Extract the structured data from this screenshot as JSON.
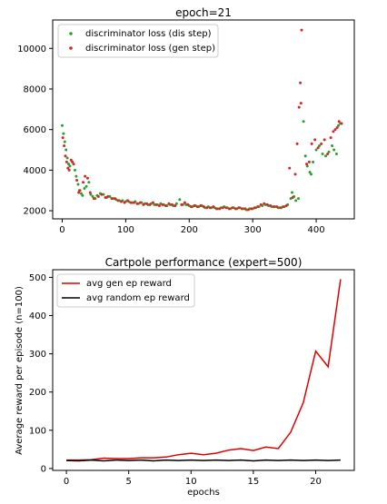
{
  "chart_data": [
    {
      "type": "scatter",
      "title": "epoch=21",
      "xlabel": "",
      "ylabel": "",
      "xlim": [
        -15,
        460
      ],
      "ylim": [
        1600,
        11400
      ],
      "x_ticks": [
        0,
        100,
        200,
        300,
        400
      ],
      "y_ticks": [
        2000,
        4000,
        6000,
        8000,
        10000
      ],
      "grid": false,
      "legend_position": "top-left",
      "series": [
        {
          "name": "discriminator loss (dis step)",
          "color": "#2ca02c",
          "points": [
            [
              0,
              6200
            ],
            [
              2,
              5800
            ],
            [
              4,
              5400
            ],
            [
              6,
              5000
            ],
            [
              8,
              4600
            ],
            [
              10,
              4300
            ],
            [
              12,
              4200
            ],
            [
              20,
              4000
            ],
            [
              22,
              3700
            ],
            [
              25,
              3300
            ],
            [
              27,
              3000
            ],
            [
              30,
              2850
            ],
            [
              32,
              2750
            ],
            [
              35,
              3100
            ],
            [
              38,
              3200
            ],
            [
              42,
              3400
            ],
            [
              45,
              2800
            ],
            [
              48,
              2700
            ],
            [
              52,
              2600
            ],
            [
              55,
              2750
            ],
            [
              60,
              2850
            ],
            [
              65,
              2800
            ],
            [
              70,
              2650
            ],
            [
              75,
              2700
            ],
            [
              80,
              2600
            ],
            [
              85,
              2550
            ],
            [
              90,
              2500
            ],
            [
              95,
              2500
            ],
            [
              100,
              2450
            ],
            [
              105,
              2450
            ],
            [
              110,
              2400
            ],
            [
              115,
              2450
            ],
            [
              120,
              2350
            ],
            [
              125,
              2400
            ],
            [
              130,
              2350
            ],
            [
              135,
              2300
            ],
            [
              140,
              2350
            ],
            [
              145,
              2300
            ],
            [
              150,
              2300
            ],
            [
              155,
              2350
            ],
            [
              160,
              2300
            ],
            [
              165,
              2250
            ],
            [
              170,
              2300
            ],
            [
              175,
              2250
            ],
            [
              180,
              2350
            ],
            [
              185,
              2550
            ],
            [
              190,
              2300
            ],
            [
              195,
              2300
            ],
            [
              200,
              2250
            ],
            [
              205,
              2200
            ],
            [
              210,
              2250
            ],
            [
              215,
              2200
            ],
            [
              220,
              2250
            ],
            [
              225,
              2150
            ],
            [
              230,
              2200
            ],
            [
              235,
              2150
            ],
            [
              240,
              2150
            ],
            [
              245,
              2100
            ],
            [
              250,
              2150
            ],
            [
              255,
              2200
            ],
            [
              260,
              2150
            ],
            [
              265,
              2100
            ],
            [
              270,
              2150
            ],
            [
              275,
              2100
            ],
            [
              280,
              2150
            ],
            [
              285,
              2100
            ],
            [
              290,
              2050
            ],
            [
              295,
              2100
            ],
            [
              300,
              2100
            ],
            [
              305,
              2150
            ],
            [
              310,
              2200
            ],
            [
              315,
              2250
            ],
            [
              320,
              2300
            ],
            [
              325,
              2250
            ],
            [
              330,
              2200
            ],
            [
              335,
              2200
            ],
            [
              340,
              2150
            ],
            [
              345,
              2150
            ],
            [
              350,
              2200
            ],
            [
              355,
              2300
            ],
            [
              360,
              2600
            ],
            [
              362,
              2900
            ],
            [
              365,
              2700
            ],
            [
              368,
              2500
            ],
            [
              372,
              2600
            ],
            [
              380,
              6400
            ],
            [
              383,
              4700
            ],
            [
              386,
              4200
            ],
            [
              390,
              3900
            ],
            [
              392,
              3800
            ],
            [
              395,
              4400
            ],
            [
              400,
              5000
            ],
            [
              405,
              5200
            ],
            [
              410,
              4800
            ],
            [
              415,
              4700
            ],
            [
              420,
              4900
            ],
            [
              425,
              5200
            ],
            [
              428,
              5000
            ],
            [
              432,
              4800
            ],
            [
              435,
              6200
            ],
            [
              438,
              6300
            ]
          ]
        },
        {
          "name": "discriminator loss (gen step)",
          "color": "#d62728",
          "points": [
            [
              1,
              5600
            ],
            [
              3,
              5200
            ],
            [
              5,
              4700
            ],
            [
              7,
              4400
            ],
            [
              9,
              4100
            ],
            [
              11,
              4000
            ],
            [
              14,
              4500
            ],
            [
              16,
              4400
            ],
            [
              18,
              4300
            ],
            [
              23,
              3500
            ],
            [
              26,
              2900
            ],
            [
              28,
              3000
            ],
            [
              33,
              3400
            ],
            [
              36,
              3700
            ],
            [
              40,
              3600
            ],
            [
              44,
              2900
            ],
            [
              50,
              2600
            ],
            [
              57,
              2700
            ],
            [
              62,
              2800
            ],
            [
              68,
              2650
            ],
            [
              72,
              2700
            ],
            [
              78,
              2600
            ],
            [
              83,
              2600
            ],
            [
              88,
              2500
            ],
            [
              93,
              2450
            ],
            [
              98,
              2400
            ],
            [
              103,
              2500
            ],
            [
              108,
              2400
            ],
            [
              113,
              2400
            ],
            [
              118,
              2350
            ],
            [
              123,
              2400
            ],
            [
              128,
              2300
            ],
            [
              133,
              2350
            ],
            [
              138,
              2300
            ],
            [
              143,
              2400
            ],
            [
              148,
              2300
            ],
            [
              153,
              2250
            ],
            [
              158,
              2300
            ],
            [
              163,
              2250
            ],
            [
              168,
              2350
            ],
            [
              173,
              2300
            ],
            [
              178,
              2250
            ],
            [
              188,
              2300
            ],
            [
              193,
              2400
            ],
            [
              198,
              2300
            ],
            [
              203,
              2200
            ],
            [
              208,
              2250
            ],
            [
              213,
              2200
            ],
            [
              218,
              2250
            ],
            [
              223,
              2200
            ],
            [
              228,
              2150
            ],
            [
              233,
              2150
            ],
            [
              238,
              2200
            ],
            [
              243,
              2100
            ],
            [
              248,
              2100
            ],
            [
              253,
              2150
            ],
            [
              258,
              2150
            ],
            [
              263,
              2100
            ],
            [
              268,
              2150
            ],
            [
              273,
              2100
            ],
            [
              278,
              2150
            ],
            [
              283,
              2100
            ],
            [
              288,
              2100
            ],
            [
              293,
              2050
            ],
            [
              298,
              2100
            ],
            [
              303,
              2150
            ],
            [
              308,
              2200
            ],
            [
              313,
              2300
            ],
            [
              318,
              2350
            ],
            [
              323,
              2300
            ],
            [
              328,
              2250
            ],
            [
              333,
              2200
            ],
            [
              338,
              2200
            ],
            [
              343,
              2150
            ],
            [
              348,
              2200
            ],
            [
              353,
              2250
            ],
            [
              358,
              4100
            ],
            [
              363,
              2650
            ],
            [
              367,
              3800
            ],
            [
              370,
              5300
            ],
            [
              373,
              7100
            ],
            [
              375,
              8300
            ],
            [
              376,
              7300
            ],
            [
              377,
              10900
            ],
            [
              385,
              4300
            ],
            [
              389,
              4400
            ],
            [
              393,
              5300
            ],
            [
              398,
              5500
            ],
            [
              403,
              5100
            ],
            [
              408,
              5300
            ],
            [
              413,
              5500
            ],
            [
              418,
              4800
            ],
            [
              423,
              5600
            ],
            [
              427,
              5900
            ],
            [
              430,
              6000
            ],
            [
              433,
              6100
            ],
            [
              436,
              6400
            ],
            [
              440,
              6300
            ]
          ]
        }
      ]
    },
    {
      "type": "line",
      "title": "Cartpole performance (expert=500)",
      "xlabel": "epochs",
      "ylabel": "Average reward per episode (n=100)",
      "xlim": [
        -1.1,
        23.1
      ],
      "ylim": [
        -5,
        520
      ],
      "x_ticks": [
        0,
        5,
        10,
        15,
        20
      ],
      "y_ticks": [
        0,
        100,
        200,
        300,
        400,
        500
      ],
      "grid": false,
      "legend_position": "top-left",
      "x": [
        0,
        1,
        2,
        3,
        4,
        5,
        6,
        7,
        8,
        9,
        10,
        11,
        12,
        13,
        14,
        15,
        16,
        17,
        18,
        19,
        20,
        21,
        22
      ],
      "series": [
        {
          "name": "avg gen ep reward",
          "color": "#e00000",
          "values": [
            22,
            22,
            23,
            27,
            26,
            26,
            28,
            28,
            30,
            36,
            40,
            36,
            40,
            48,
            52,
            47,
            56,
            52,
            95,
            172,
            307,
            266,
            495
          ]
        },
        {
          "name": "avg random ep reward",
          "color": "#000000",
          "values": [
            21,
            20,
            22,
            20,
            22,
            21,
            22,
            20,
            22,
            21,
            22,
            21,
            22,
            21,
            22,
            20,
            22,
            21,
            22,
            21,
            22,
            21,
            22
          ]
        }
      ]
    }
  ]
}
